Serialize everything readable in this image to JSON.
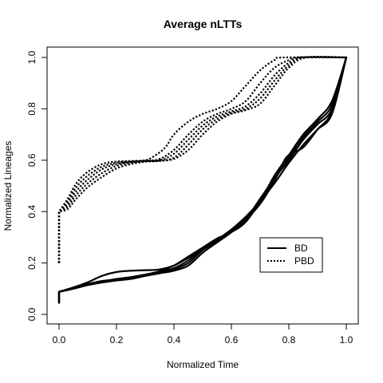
{
  "chart_data": {
    "type": "line",
    "title": "Average nLTTs",
    "xlabel": "Normalized Time",
    "ylabel": "Normalized Lineages",
    "xlim": [
      0.0,
      1.0
    ],
    "ylim": [
      0.0,
      1.0
    ],
    "x_ticks": [
      "0.0",
      "0.2",
      "0.4",
      "0.6",
      "0.8",
      "1.0"
    ],
    "y_ticks": [
      "0.0",
      "0.2",
      "0.4",
      "0.6",
      "0.8",
      "1.0"
    ],
    "grid": false,
    "legend_position": "right",
    "legend": [
      {
        "label": "BD",
        "style": "solid"
      },
      {
        "label": "PBD",
        "style": "dotted"
      }
    ],
    "series": [
      {
        "group": "BD",
        "style": "solid",
        "points": [
          [
            0,
            0.045
          ],
          [
            0,
            0.088
          ],
          [
            0.05,
            0.105
          ],
          [
            0.1,
            0.125
          ],
          [
            0.15,
            0.15
          ],
          [
            0.2,
            0.165
          ],
          [
            0.25,
            0.17
          ],
          [
            0.3,
            0.172
          ],
          [
            0.35,
            0.175
          ],
          [
            0.4,
            0.19
          ],
          [
            0.45,
            0.22
          ],
          [
            0.5,
            0.255
          ],
          [
            0.55,
            0.29
          ],
          [
            0.6,
            0.33
          ],
          [
            0.65,
            0.37
          ],
          [
            0.7,
            0.43
          ],
          [
            0.75,
            0.52
          ],
          [
            0.78,
            0.59
          ],
          [
            0.8,
            0.62
          ],
          [
            0.85,
            0.65
          ],
          [
            0.9,
            0.72
          ],
          [
            0.95,
            0.79
          ],
          [
            1.0,
            1.0
          ]
        ]
      },
      {
        "group": "BD",
        "style": "solid",
        "points": [
          [
            0,
            0.045
          ],
          [
            0,
            0.088
          ],
          [
            0.05,
            0.1
          ],
          [
            0.1,
            0.115
          ],
          [
            0.15,
            0.128
          ],
          [
            0.2,
            0.138
          ],
          [
            0.25,
            0.145
          ],
          [
            0.3,
            0.155
          ],
          [
            0.35,
            0.168
          ],
          [
            0.4,
            0.19
          ],
          [
            0.45,
            0.225
          ],
          [
            0.5,
            0.26
          ],
          [
            0.55,
            0.295
          ],
          [
            0.6,
            0.32
          ],
          [
            0.65,
            0.36
          ],
          [
            0.7,
            0.44
          ],
          [
            0.75,
            0.54
          ],
          [
            0.8,
            0.62
          ],
          [
            0.85,
            0.7
          ],
          [
            0.9,
            0.76
          ],
          [
            0.95,
            0.83
          ],
          [
            1.0,
            1.0
          ]
        ]
      },
      {
        "group": "BD",
        "style": "solid",
        "points": [
          [
            0,
            0.045
          ],
          [
            0,
            0.088
          ],
          [
            0.05,
            0.102
          ],
          [
            0.1,
            0.118
          ],
          [
            0.15,
            0.13
          ],
          [
            0.2,
            0.135
          ],
          [
            0.25,
            0.142
          ],
          [
            0.3,
            0.15
          ],
          [
            0.35,
            0.16
          ],
          [
            0.4,
            0.17
          ],
          [
            0.45,
            0.19
          ],
          [
            0.5,
            0.24
          ],
          [
            0.55,
            0.28
          ],
          [
            0.6,
            0.32
          ],
          [
            0.65,
            0.37
          ],
          [
            0.7,
            0.45
          ],
          [
            0.75,
            0.53
          ],
          [
            0.8,
            0.6
          ],
          [
            0.85,
            0.68
          ],
          [
            0.9,
            0.74
          ],
          [
            0.95,
            0.8
          ],
          [
            1.0,
            1.0
          ]
        ]
      },
      {
        "group": "BD",
        "style": "solid",
        "points": [
          [
            0,
            0.045
          ],
          [
            0,
            0.088
          ],
          [
            0.05,
            0.1
          ],
          [
            0.1,
            0.114
          ],
          [
            0.15,
            0.124
          ],
          [
            0.2,
            0.132
          ],
          [
            0.25,
            0.138
          ],
          [
            0.3,
            0.15
          ],
          [
            0.35,
            0.163
          ],
          [
            0.4,
            0.175
          ],
          [
            0.45,
            0.2
          ],
          [
            0.5,
            0.25
          ],
          [
            0.55,
            0.285
          ],
          [
            0.6,
            0.33
          ],
          [
            0.65,
            0.38
          ],
          [
            0.7,
            0.44
          ],
          [
            0.75,
            0.51
          ],
          [
            0.8,
            0.59
          ],
          [
            0.85,
            0.66
          ],
          [
            0.9,
            0.72
          ],
          [
            0.95,
            0.78
          ],
          [
            1.0,
            1.0
          ]
        ]
      },
      {
        "group": "BD",
        "style": "solid",
        "points": [
          [
            0,
            0.045
          ],
          [
            0,
            0.088
          ],
          [
            0.05,
            0.101
          ],
          [
            0.1,
            0.116
          ],
          [
            0.15,
            0.126
          ],
          [
            0.2,
            0.134
          ],
          [
            0.25,
            0.141
          ],
          [
            0.3,
            0.152
          ],
          [
            0.35,
            0.165
          ],
          [
            0.4,
            0.18
          ],
          [
            0.45,
            0.21
          ],
          [
            0.5,
            0.255
          ],
          [
            0.55,
            0.29
          ],
          [
            0.6,
            0.325
          ],
          [
            0.65,
            0.375
          ],
          [
            0.7,
            0.445
          ],
          [
            0.75,
            0.525
          ],
          [
            0.8,
            0.61
          ],
          [
            0.85,
            0.69
          ],
          [
            0.9,
            0.75
          ],
          [
            0.95,
            0.815
          ],
          [
            1.0,
            1.0
          ]
        ]
      },
      {
        "group": "PBD",
        "style": "dotted",
        "points": [
          [
            0,
            0.2
          ],
          [
            0,
            0.4
          ],
          [
            0.03,
            0.45
          ],
          [
            0.06,
            0.51
          ],
          [
            0.1,
            0.555
          ],
          [
            0.15,
            0.585
          ],
          [
            0.2,
            0.595
          ],
          [
            0.25,
            0.597
          ],
          [
            0.3,
            0.6
          ],
          [
            0.33,
            0.615
          ],
          [
            0.37,
            0.65
          ],
          [
            0.4,
            0.7
          ],
          [
            0.45,
            0.75
          ],
          [
            0.5,
            0.78
          ],
          [
            0.55,
            0.8
          ],
          [
            0.6,
            0.83
          ],
          [
            0.65,
            0.89
          ],
          [
            0.7,
            0.95
          ],
          [
            0.75,
            0.99
          ],
          [
            0.78,
            1.0
          ],
          [
            1.0,
            1.0
          ]
        ]
      },
      {
        "group": "PBD",
        "style": "dotted",
        "points": [
          [
            0,
            0.2
          ],
          [
            0,
            0.4
          ],
          [
            0.03,
            0.44
          ],
          [
            0.06,
            0.495
          ],
          [
            0.1,
            0.54
          ],
          [
            0.15,
            0.575
          ],
          [
            0.2,
            0.59
          ],
          [
            0.25,
            0.595
          ],
          [
            0.3,
            0.598
          ],
          [
            0.35,
            0.605
          ],
          [
            0.4,
            0.64
          ],
          [
            0.45,
            0.7
          ],
          [
            0.5,
            0.75
          ],
          [
            0.55,
            0.78
          ],
          [
            0.6,
            0.8
          ],
          [
            0.65,
            0.83
          ],
          [
            0.7,
            0.9
          ],
          [
            0.75,
            0.96
          ],
          [
            0.8,
            0.99
          ],
          [
            0.83,
            1.0
          ],
          [
            1.0,
            1.0
          ]
        ]
      },
      {
        "group": "PBD",
        "style": "dotted",
        "points": [
          [
            0,
            0.2
          ],
          [
            0,
            0.4
          ],
          [
            0.03,
            0.43
          ],
          [
            0.06,
            0.48
          ],
          [
            0.1,
            0.525
          ],
          [
            0.15,
            0.565
          ],
          [
            0.2,
            0.585
          ],
          [
            0.25,
            0.593
          ],
          [
            0.3,
            0.597
          ],
          [
            0.35,
            0.6
          ],
          [
            0.4,
            0.625
          ],
          [
            0.45,
            0.68
          ],
          [
            0.5,
            0.735
          ],
          [
            0.55,
            0.77
          ],
          [
            0.6,
            0.79
          ],
          [
            0.65,
            0.81
          ],
          [
            0.7,
            0.86
          ],
          [
            0.75,
            0.93
          ],
          [
            0.8,
            0.98
          ],
          [
            0.84,
            1.0
          ],
          [
            1.0,
            1.0
          ]
        ]
      },
      {
        "group": "PBD",
        "style": "dotted",
        "points": [
          [
            0,
            0.2
          ],
          [
            0,
            0.4
          ],
          [
            0.03,
            0.42
          ],
          [
            0.06,
            0.465
          ],
          [
            0.1,
            0.51
          ],
          [
            0.15,
            0.55
          ],
          [
            0.2,
            0.578
          ],
          [
            0.25,
            0.59
          ],
          [
            0.3,
            0.596
          ],
          [
            0.35,
            0.598
          ],
          [
            0.4,
            0.61
          ],
          [
            0.45,
            0.66
          ],
          [
            0.5,
            0.72
          ],
          [
            0.55,
            0.76
          ],
          [
            0.6,
            0.785
          ],
          [
            0.65,
            0.8
          ],
          [
            0.7,
            0.84
          ],
          [
            0.75,
            0.91
          ],
          [
            0.8,
            0.97
          ],
          [
            0.85,
            1.0
          ],
          [
            1.0,
            1.0
          ]
        ]
      },
      {
        "group": "PBD",
        "style": "dotted",
        "points": [
          [
            0,
            0.2
          ],
          [
            0,
            0.4
          ],
          [
            0.03,
            0.41
          ],
          [
            0.06,
            0.45
          ],
          [
            0.1,
            0.495
          ],
          [
            0.15,
            0.535
          ],
          [
            0.2,
            0.568
          ],
          [
            0.25,
            0.585
          ],
          [
            0.3,
            0.594
          ],
          [
            0.35,
            0.597
          ],
          [
            0.4,
            0.605
          ],
          [
            0.45,
            0.64
          ],
          [
            0.5,
            0.7
          ],
          [
            0.55,
            0.75
          ],
          [
            0.6,
            0.78
          ],
          [
            0.65,
            0.795
          ],
          [
            0.7,
            0.82
          ],
          [
            0.75,
            0.89
          ],
          [
            0.8,
            0.96
          ],
          [
            0.86,
            1.0
          ],
          [
            1.0,
            1.0
          ]
        ]
      }
    ]
  }
}
